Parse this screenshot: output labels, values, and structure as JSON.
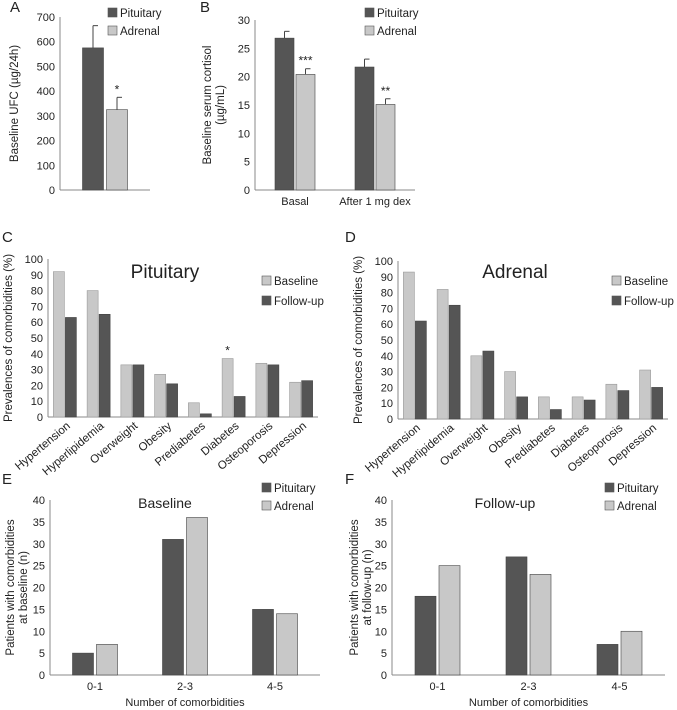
{
  "colors": {
    "dark": "#555555",
    "light": "#c8c8c8"
  },
  "chart_data": [
    {
      "panel": "A",
      "type": "bar",
      "ylabel": "Baseline UFC (µg/24h)",
      "ylim": [
        0,
        700
      ],
      "yticks": [
        0,
        100,
        200,
        300,
        400,
        500,
        600,
        700
      ],
      "categories": [
        ""
      ],
      "series": [
        {
          "name": "Pituitary",
          "values": [
            575
          ],
          "errors": [
            90
          ]
        },
        {
          "name": "Adrenal",
          "values": [
            325
          ],
          "errors": [
            50
          ],
          "sig": [
            "*"
          ]
        }
      ]
    },
    {
      "panel": "B",
      "type": "bar",
      "ylabel": "Baseline serum cortisol (µg/mL)",
      "ylim": [
        0,
        30
      ],
      "yticks": [
        0,
        5,
        10,
        15,
        20,
        25,
        30
      ],
      "categories": [
        "Basal",
        "After 1 mg dex"
      ],
      "series": [
        {
          "name": "Pituitary",
          "values": [
            26.8,
            21.7
          ],
          "errors": [
            1.2,
            1.4
          ]
        },
        {
          "name": "Adrenal",
          "values": [
            20.4,
            15.1
          ],
          "errors": [
            1.0,
            1.0
          ],
          "sig": [
            "***",
            "**"
          ]
        }
      ]
    },
    {
      "panel": "C",
      "type": "bar",
      "title": "Pituitary",
      "ylabel": "Prevalences of comorbidities (%)",
      "ylim": [
        0,
        100
      ],
      "yticks": [
        0,
        10,
        20,
        30,
        40,
        50,
        60,
        70,
        80,
        90,
        100
      ],
      "categories": [
        "Hypertension",
        "Hyperlipidemia",
        "Overweight",
        "Obesity",
        "Prediabetes",
        "Diabetes",
        "Osteoporosis",
        "Depression"
      ],
      "series": [
        {
          "name": "Baseline",
          "values": [
            92,
            80,
            33,
            27,
            9,
            37,
            34,
            22
          ],
          "sig": [
            "",
            "",
            "",
            "",
            "",
            "*",
            "",
            ""
          ]
        },
        {
          "name": "Follow-up",
          "values": [
            63,
            65,
            33,
            21,
            2,
            13,
            33,
            23
          ]
        }
      ]
    },
    {
      "panel": "D",
      "type": "bar",
      "title": "Adrenal",
      "ylabel": "Prevalences of comorbidities (%)",
      "ylim": [
        0,
        100
      ],
      "yticks": [
        0,
        10,
        20,
        30,
        40,
        50,
        60,
        70,
        80,
        90,
        100
      ],
      "categories": [
        "Hypertension",
        "Hyperlipidemia",
        "Overweight",
        "Obesity",
        "Prediabetes",
        "Diabetes",
        "Osteoporosis",
        "Depression"
      ],
      "series": [
        {
          "name": "Baseline",
          "values": [
            93,
            82,
            40,
            30,
            14,
            14,
            22,
            31
          ]
        },
        {
          "name": "Follow-up",
          "values": [
            62,
            72,
            43,
            14,
            6,
            12,
            18,
            20
          ]
        }
      ]
    },
    {
      "panel": "E",
      "type": "bar",
      "title": "Baseline",
      "ylabel": "Patients with comorbidities at baseline (n)",
      "xlabel": "Number of comorbidities",
      "ylim": [
        0,
        40
      ],
      "yticks": [
        0,
        5,
        10,
        15,
        20,
        25,
        30,
        35,
        40
      ],
      "categories": [
        "0-1",
        "2-3",
        "4-5"
      ],
      "series": [
        {
          "name": "Pituitary",
          "values": [
            5,
            31,
            15
          ]
        },
        {
          "name": "Adrenal",
          "values": [
            7,
            36,
            14
          ]
        }
      ]
    },
    {
      "panel": "F",
      "type": "bar",
      "title": "Follow-up",
      "ylabel": "Patients with comorbidities at follow-up (n)",
      "xlabel": "Number of comorbidities",
      "ylim": [
        0,
        40
      ],
      "yticks": [
        0,
        5,
        10,
        15,
        20,
        25,
        30,
        35,
        40
      ],
      "categories": [
        "0-1",
        "2-3",
        "4-5"
      ],
      "series": [
        {
          "name": "Pituitary",
          "values": [
            18,
            27,
            7
          ]
        },
        {
          "name": "Adrenal",
          "values": [
            25,
            23,
            10
          ]
        }
      ]
    }
  ]
}
